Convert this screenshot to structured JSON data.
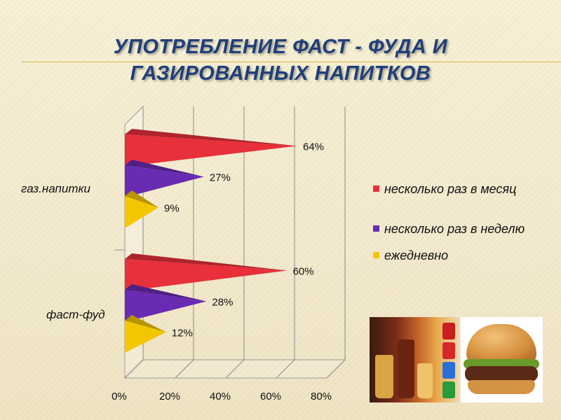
{
  "slide": {
    "title_line1": "УПОТРЕБЛЕНИЕ ФАСТ - ФУДА И",
    "title_line2": "ГАЗИРОВАННЫХ НАПИТКОВ"
  },
  "chart_data": {
    "type": "bar",
    "orientation": "horizontal",
    "style": "3d-cone",
    "title": "УПОТРЕБЛЕНИЕ ФАСТ - ФУДА И ГАЗИРОВАННЫХ НАПИТКОВ",
    "categories": [
      "газ.напитки",
      "фаст-фуд"
    ],
    "series": [
      {
        "name": "несколько раз в месяц",
        "color": "#e8303a",
        "values": [
          64,
          60
        ],
        "labels": [
          "64%",
          "60%"
        ]
      },
      {
        "name": "несколько раз в неделю",
        "color": "#6a2bb3",
        "values": [
          27,
          28
        ],
        "labels": [
          "27%",
          "28%"
        ]
      },
      {
        "name": "ежедневно",
        "color": "#f3c700",
        "values": [
          9,
          12
        ],
        "labels": [
          "9%",
          "12%"
        ]
      }
    ],
    "xlim": [
      0,
      80
    ],
    "xticks": [
      0,
      20,
      40,
      60,
      80
    ],
    "xtick_labels": [
      "0%",
      "20%",
      "40%",
      "60%",
      "80%"
    ],
    "legend_placement": "right",
    "grid": true
  },
  "icons": {
    "drinks": "soft-drinks-photo",
    "burger": "hamburger-photo"
  }
}
